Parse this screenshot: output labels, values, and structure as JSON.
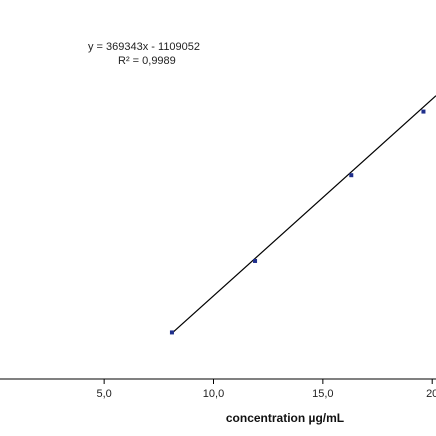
{
  "chart_data": {
    "type": "scatter",
    "title": "",
    "xlabel": "concentration µg/mL",
    "ylabel": "",
    "x_ticks": [
      "5,0",
      "10,0",
      "15,0",
      "20"
    ],
    "x_tick_values": [
      5,
      10,
      15,
      20
    ],
    "xlim": [
      0,
      20.5
    ],
    "ylim": [
      1000000,
      8000000
    ],
    "grid": false,
    "legend": "none",
    "series": [
      {
        "x": [
          8.1,
          11.9,
          16.3,
          19.6
        ],
        "y": [
          1898000,
          3276000,
          4930000,
          6157000
        ],
        "color": "#1f2f8c"
      }
    ],
    "trendline": {
      "slope": 369343,
      "intercept": -1109052,
      "x_range": [
        8.1,
        20.5
      ],
      "color": "#000000"
    },
    "annotations": {
      "equation": "y = 369343x - 1109052",
      "r_squared": "R² = 0,9989"
    }
  }
}
